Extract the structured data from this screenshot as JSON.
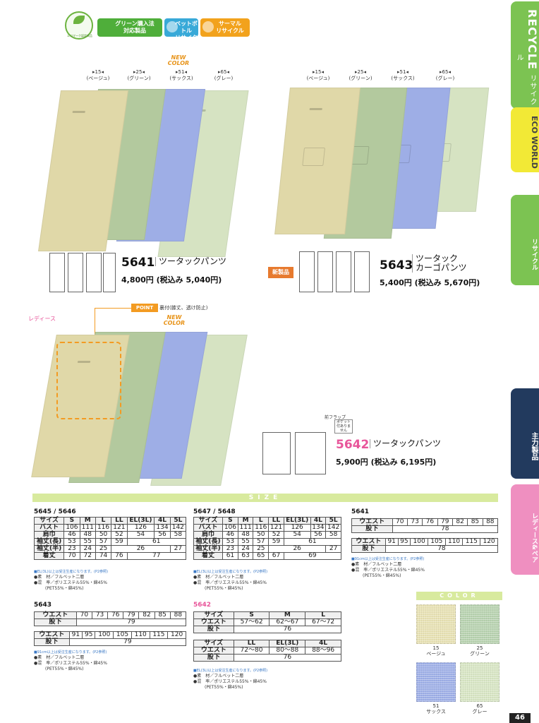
{
  "badges": {
    "eco_text": "エコマーク認定商品",
    "green_purchase": [
      "グリーン購入法",
      "対応製品"
    ],
    "pet_bottle": [
      "ペットボトル",
      "リサイクル"
    ],
    "thermal": [
      "サーマル",
      "リサイクル"
    ]
  },
  "tabs": {
    "recycle_en": "RECYCLE",
    "recycle_jp": "リサイクル",
    "eco_world": "ECO WORLD",
    "recycle_2": "リサイクル",
    "main_products": "主力製品",
    "ladies": "レディース&ペア"
  },
  "new_color": [
    "NEW",
    "COLOR"
  ],
  "colors_labels": [
    [
      "▸15◂",
      "(ベージュ)"
    ],
    [
      "▸25◂",
      "(グリーン)"
    ],
    [
      "▸51◂",
      "(サックス)"
    ],
    [
      "▸65◂",
      "(グレー)"
    ]
  ],
  "products": {
    "p5641": {
      "no": "5641",
      "name": "ツータックパンツ",
      "price": "4,800円 (税込み 5,040円)"
    },
    "p5643": {
      "no": "5643",
      "name": [
        "ツータック",
        "カーゴパンツ"
      ],
      "price": "5,400円 (税込み 5,670円)",
      "badge": "新製品"
    },
    "p5642": {
      "no": "5642",
      "name": "ツータックパンツ",
      "price": "5,900円 (税込み 6,195円)"
    }
  },
  "ladies_label": "レディース",
  "point": {
    "tag": "POINT",
    "text": "裏付(膝丈、透け防止)"
  },
  "flap_note": {
    "title": "前フラップ",
    "box": "ポケット付ありません"
  },
  "size_bar": "SIZE",
  "tables": {
    "t5645": {
      "title": "5645 / 5646",
      "header": [
        "サイズ",
        "S",
        "M",
        "L",
        "LL",
        "EL(3L)",
        "4L",
        "5L"
      ],
      "rows": [
        [
          "バスト",
          "106",
          "111",
          "116",
          "121",
          "126",
          "134",
          "142"
        ],
        [
          "肩巾",
          "46",
          "48",
          "50",
          "52",
          "54",
          "56",
          "58"
        ],
        [
          "袖丈(長)",
          "53",
          "55",
          "57",
          "59",
          "61"
        ],
        [
          "袖丈(半)",
          "23",
          "24",
          "25",
          "26",
          "27"
        ],
        [
          "着丈",
          "70",
          "72",
          "74",
          "76",
          "77"
        ]
      ],
      "footnote": "■EL(3L)以上は受注生産になります。(P2参照)",
      "material": "●素　材／フルベット二層",
      "blend": "●混　率／ポリエステル55%・綿45%",
      "blend2": "(PET55%・綿45%)"
    },
    "t5647": {
      "title": "5647 / 5648",
      "header": [
        "サイズ",
        "S",
        "M",
        "L",
        "LL",
        "EL(3L)",
        "4L",
        "5L"
      ],
      "rows": [
        [
          "バスト",
          "106",
          "111",
          "116",
          "121",
          "126",
          "134",
          "142"
        ],
        [
          "肩巾",
          "46",
          "48",
          "50",
          "52",
          "54",
          "56",
          "58"
        ],
        [
          "袖丈(長)",
          "53",
          "55",
          "57",
          "59",
          "61"
        ],
        [
          "袖丈(半)",
          "23",
          "24",
          "25",
          "26",
          "27"
        ],
        [
          "着丈",
          "61",
          "63",
          "65",
          "67",
          "69"
        ]
      ],
      "footnote": "■EL(3L)以上は受注生産になります。(P2参照)",
      "material": "●素　材／フルベット二層",
      "blend": "●混　率／ポリエステル55%・綿45%",
      "blend2": "(PET55%・綿45%)"
    },
    "t5641": {
      "title": "5641",
      "waist_a": [
        "ウエスト",
        "70",
        "73",
        "76",
        "79",
        "82",
        "85",
        "88"
      ],
      "inseam_a": [
        "股下",
        "78"
      ],
      "waist_b": [
        "ウエスト",
        "91",
        "95",
        "100",
        "105",
        "110",
        "115",
        "120"
      ],
      "inseam_b": [
        "股下",
        "78"
      ],
      "footnote": "■91cm以上は受注生産になります。(P2参照)",
      "material": "●素　材／フルベット二層",
      "blend": "●混　率／ポリエステル55%・綿45%",
      "blend2": "(PET55%・綿45%)"
    },
    "t5643": {
      "title": "5643",
      "waist_a": [
        "ウエスト",
        "70",
        "73",
        "76",
        "79",
        "82",
        "85",
        "88"
      ],
      "inseam_a": [
        "股下",
        "79"
      ],
      "waist_b": [
        "ウエスト",
        "91",
        "95",
        "100",
        "105",
        "110",
        "115",
        "120"
      ],
      "inseam_b": [
        "股下",
        "79"
      ],
      "footnote": "■91cm以上は受注生産になります。(P2参照)",
      "material": "●素　材／フルベット二層",
      "blend": "●混　率／ポリエステル55%・綿45%",
      "blend2": "(PET55%・綿45%)"
    },
    "t5642": {
      "title": "5642",
      "header_a": [
        "サイズ",
        "S",
        "M",
        "L"
      ],
      "waist_a": [
        "ウエスト",
        "57〜62",
        "62〜67",
        "67〜72"
      ],
      "inseam_a": [
        "股下",
        "76"
      ],
      "header_b": [
        "サイズ",
        "LL",
        "EL(3L)",
        "4L"
      ],
      "waist_b": [
        "ウエスト",
        "72〜80",
        "80〜88",
        "88〜96"
      ],
      "inseam_b": [
        "股下",
        "76"
      ],
      "footnote": "■EL(3L)以上は受注生産になります。(P2参照)",
      "material": "●素　材／フルベット二層",
      "blend": "●混　率／ポリエステル55%・綿45%",
      "blend2": "(PET55%・綿45%)"
    }
  },
  "color_bar": "COLOR",
  "swatches": [
    {
      "code": "15",
      "name": "ベージュ",
      "color": "#e8e2b4"
    },
    {
      "code": "25",
      "name": "グリーン",
      "color": "#b8d3b0"
    },
    {
      "code": "51",
      "name": "サックス",
      "color": "#9fb0e8"
    },
    {
      "code": "65",
      "name": "グレー",
      "color": "#d8e6c4"
    }
  ],
  "garment_colors": {
    "beige": "#e0d8a8",
    "green": "#b3c99e",
    "sax": "#9eaee6",
    "gray": "#d6e3c2"
  },
  "page_number": "46"
}
